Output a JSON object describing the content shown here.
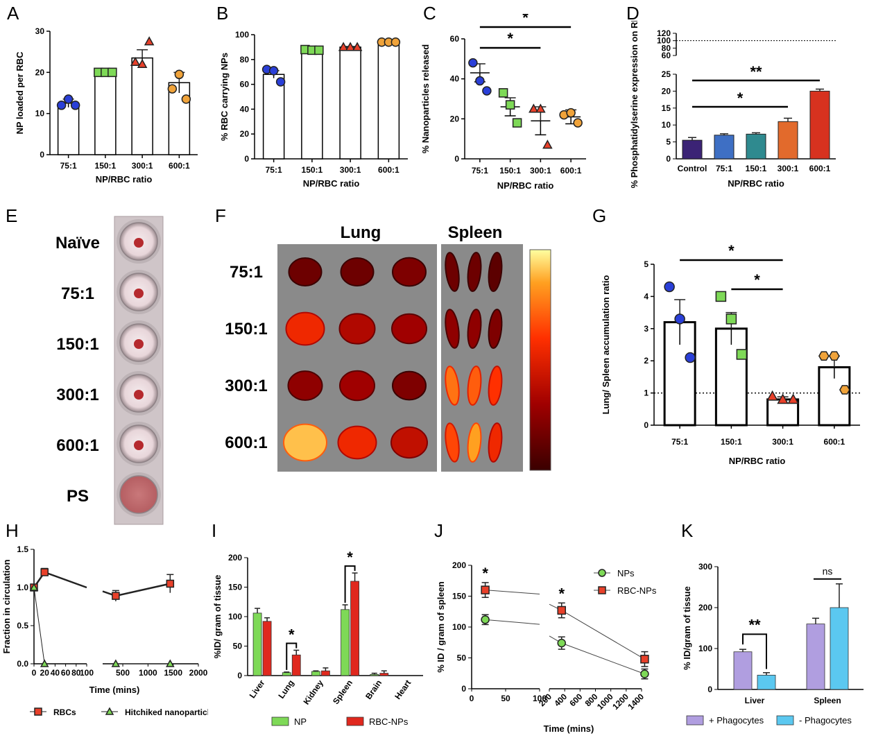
{
  "chart_data": [
    {
      "id": "A",
      "type": "bar",
      "panel_label": "A",
      "categories": [
        "75:1",
        "150:1",
        "300:1",
        "600:1"
      ],
      "values": [
        12.5,
        20,
        23.5,
        17.5
      ],
      "errors": [
        1,
        0.3,
        2,
        2.5
      ],
      "points": [
        [
          12,
          13.5,
          12
        ],
        [
          20,
          20,
          20
        ],
        [
          22.5,
          22,
          27.5
        ],
        [
          16,
          19.5,
          13.5
        ]
      ],
      "point_colors": [
        "#2a3fd8",
        "#7ed957",
        "#e8402a",
        "#f0a33a"
      ],
      "point_shapes": [
        "circle",
        "square",
        "triangle",
        "circle"
      ],
      "ylabel": "NP loaded per RBC",
      "xlabel": "NP/RBC ratio",
      "ylim": [
        0,
        30
      ],
      "yticks": [
        "0",
        "10",
        "20",
        "30"
      ]
    },
    {
      "id": "B",
      "type": "bar",
      "panel_label": "B",
      "categories": [
        "75:1",
        "150:1",
        "300:1",
        "600:1"
      ],
      "values": [
        68,
        87,
        90,
        94
      ],
      "errors": [
        3,
        1.5,
        0.5,
        0.5
      ],
      "points": [
        [
          72,
          71,
          62
        ],
        [
          88,
          87.5,
          87.5
        ],
        [
          90,
          90,
          90
        ],
        [
          94,
          94,
          94
        ]
      ],
      "point_colors": [
        "#2a3fd8",
        "#7ed957",
        "#e8402a",
        "#f0a33a"
      ],
      "point_shapes": [
        "circle",
        "square",
        "triangle",
        "circle"
      ],
      "ylabel": "% RBC carrying NPs",
      "xlabel": "NP/RBC ratio",
      "ylim": [
        0,
        100
      ],
      "yticks": [
        "0",
        "20",
        "40",
        "60",
        "80",
        "100"
      ]
    },
    {
      "id": "C",
      "type": "scatter",
      "panel_label": "C",
      "categories": [
        "75:1",
        "150:1",
        "300:1",
        "600:1"
      ],
      "values": [
        43,
        26,
        19,
        21
      ],
      "errors": [
        4.5,
        4.5,
        7,
        3.5
      ],
      "points": [
        [
          48,
          39,
          34
        ],
        [
          33,
          27,
          18
        ],
        [
          25,
          25,
          7
        ],
        [
          22,
          23,
          18
        ]
      ],
      "point_colors": [
        "#2a3fd8",
        "#7ed957",
        "#e8402a",
        "#f0a33a"
      ],
      "point_shapes": [
        "circle",
        "square",
        "triangle",
        "circle"
      ],
      "ylabel": "% Nanoparticles released",
      "xlabel": "NP/RBC ratio",
      "ylim": [
        0,
        60
      ],
      "yticks": [
        "0",
        "20",
        "40",
        "60"
      ],
      "significance": [
        {
          "from": "75:1",
          "to": "300:1",
          "label": "*"
        },
        {
          "from": "75:1",
          "to": "600:1",
          "label": "*"
        }
      ]
    },
    {
      "id": "D",
      "type": "bar",
      "panel_label": "D",
      "categories": [
        "Control",
        "75:1",
        "150:1",
        "300:1",
        "600:1"
      ],
      "values": [
        5.5,
        7,
        7.3,
        11,
        20
      ],
      "errors": [
        0.8,
        0.4,
        0.4,
        1,
        0.6
      ],
      "bar_colors": [
        "#3b2375",
        "#3e6fc4",
        "#2f8a8f",
        "#e26a2c",
        "#d7321f"
      ],
      "ylabel": "% Phosphatidylserine expression on RBCs",
      "xlabel": "NP/RBC ratio",
      "ylim_lower": [
        0,
        25
      ],
      "ylim_upper": [
        60,
        120
      ],
      "yticks_lower": [
        "0",
        "5",
        "10",
        "15",
        "20",
        "25"
      ],
      "yticks_upper": [
        "60",
        "80",
        "100",
        "120"
      ],
      "reference_line": 100,
      "significance": [
        {
          "from": "Control",
          "to": "300:1",
          "label": "*"
        },
        {
          "from": "Control",
          "to": "600:1",
          "label": "**"
        }
      ]
    },
    {
      "id": "G",
      "type": "bar",
      "panel_label": "G",
      "categories": [
        "75:1",
        "150:1",
        "300:1",
        "600:1"
      ],
      "values": [
        3.2,
        3.0,
        0.8,
        1.8
      ],
      "errors": [
        0.7,
        0.5,
        0.08,
        0.35
      ],
      "points": [
        [
          4.3,
          3.3,
          2.1
        ],
        [
          4.0,
          3.3,
          2.2
        ],
        [
          0.9,
          0.8,
          0.8
        ],
        [
          2.15,
          2.15,
          1.1
        ]
      ],
      "point_colors": [
        "#2a3fd8",
        "#7ed957",
        "#e8402a",
        "#f0a33a"
      ],
      "point_shapes": [
        "circle",
        "square",
        "triangle",
        "hexagon"
      ],
      "ylabel": "Lung/ Spleen accumulation ratio",
      "xlabel": "NP/RBC ratio",
      "ylim": [
        0,
        5
      ],
      "yticks": [
        "0",
        "1",
        "2",
        "3",
        "4",
        "5"
      ],
      "reference_line": 1,
      "significance": [
        {
          "from": "75:1",
          "to": "300:1",
          "label": "*"
        },
        {
          "from": "150:1",
          "to": "300:1",
          "label": "*"
        }
      ]
    },
    {
      "id": "H",
      "type": "line",
      "panel_label": "H",
      "series": [
        {
          "name": "RBCs",
          "color": "#e8402a",
          "marker": "square",
          "x": [
            0,
            20,
            360,
            1440
          ],
          "y": [
            1.0,
            1.2,
            0.89,
            1.05
          ],
          "err": [
            0.04,
            0.05,
            0.07,
            0.12
          ]
        },
        {
          "name": "Hitchiked nanoparticles",
          "color": "#7ed957",
          "marker": "triangle",
          "x": [
            0,
            20,
            360,
            1440
          ],
          "y": [
            1.0,
            0.0,
            0.0,
            0.0
          ],
          "err": [
            0,
            0,
            0,
            0
          ]
        }
      ],
      "xlabel": "Time (mins)",
      "ylabel": "Fraction in circulation",
      "xticks_left": [
        "0",
        "20",
        "40",
        "60",
        "80",
        "100"
      ],
      "xticks_right": [
        "500",
        "1000",
        "1500",
        "2000"
      ],
      "ylim": [
        0,
        1.5
      ],
      "yticks": [
        "0.0",
        "0.5",
        "1.0",
        "1.5"
      ]
    },
    {
      "id": "I",
      "type": "bar",
      "panel_label": "I",
      "categories": [
        "Liver",
        "Lung",
        "Kidney",
        "Spleen",
        "Brain",
        "Heart"
      ],
      "series": [
        {
          "name": "NP",
          "color": "#7ed957",
          "values": [
            106,
            5,
            7,
            112,
            2,
            0
          ],
          "err": [
            8,
            1,
            1,
            8,
            2,
            0
          ]
        },
        {
          "name": "RBC-NPs",
          "color": "#e0281e",
          "values": [
            92,
            35,
            8,
            160,
            4,
            0
          ],
          "err": [
            6,
            8,
            5,
            14,
            4,
            0
          ]
        }
      ],
      "ylabel": "%ID/ gram of tissue",
      "ylim": [
        0,
        200
      ],
      "yticks": [
        "0",
        "50",
        "100",
        "150",
        "200"
      ],
      "significance": [
        {
          "category": "Lung",
          "label": "*"
        },
        {
          "category": "Spleen",
          "label": "*"
        }
      ]
    },
    {
      "id": "J",
      "type": "line",
      "panel_label": "J",
      "series": [
        {
          "name": "NPs",
          "color": "#7ed957",
          "marker": "circle",
          "x": [
            20,
            360,
            1440
          ],
          "y": [
            112,
            74,
            24
          ],
          "err": [
            8,
            10,
            8
          ]
        },
        {
          "name": "RBC-NPs",
          "color": "#e8402a",
          "marker": "square",
          "x": [
            20,
            360,
            1440
          ],
          "y": [
            160,
            127,
            48
          ],
          "err": [
            12,
            12,
            12
          ]
        }
      ],
      "xlabel": "Time (mins)",
      "ylabel": "% ID / gram of spleen",
      "xticks_left": [
        "0",
        "50",
        "100"
      ],
      "xticks_right": [
        "200",
        "400",
        "600",
        "800",
        "1000",
        "1200",
        "1400"
      ],
      "ylim": [
        0,
        200
      ],
      "yticks": [
        "0",
        "50",
        "100",
        "150",
        "200"
      ],
      "significance": [
        {
          "x": 20,
          "label": "*"
        },
        {
          "x": 360,
          "label": "*"
        }
      ]
    },
    {
      "id": "K",
      "type": "bar",
      "panel_label": "K",
      "categories": [
        "Liver",
        "Spleen"
      ],
      "series": [
        {
          "name": "+ Phagocytes",
          "color": "#b09ee0",
          "values": [
            92,
            160
          ],
          "err": [
            6,
            14
          ]
        },
        {
          "name": "- Phagocytes",
          "color": "#5bc8f0",
          "values": [
            35,
            200
          ],
          "err": [
            6,
            58
          ]
        }
      ],
      "ylabel": "% ID/gram of tissue",
      "ylim": [
        0,
        300
      ],
      "yticks": [
        "0",
        "100",
        "200",
        "300"
      ],
      "significance": [
        {
          "category": "Liver",
          "label": "**"
        },
        {
          "category": "Spleen",
          "label": "ns"
        }
      ]
    }
  ],
  "images": {
    "E": {
      "panel_label": "E",
      "rows": [
        "Naïve",
        "75:1",
        "150:1",
        "300:1",
        "600:1",
        "PS"
      ]
    },
    "F": {
      "panel_label": "F",
      "columns": [
        "Lung",
        "Spleen"
      ],
      "rows": [
        "75:1",
        "150:1",
        "300:1",
        "600:1"
      ],
      "heat_levels": [
        [
          0.15,
          0.15,
          0.2,
          0.15,
          0.15,
          0.1
        ],
        [
          0.55,
          0.35,
          0.3,
          0.25,
          0.25,
          0.2
        ],
        [
          0.25,
          0.3,
          0.2,
          0.75,
          0.7,
          0.6
        ],
        [
          0.9,
          0.55,
          0.4,
          0.65,
          0.85,
          0.55
        ]
      ]
    }
  }
}
